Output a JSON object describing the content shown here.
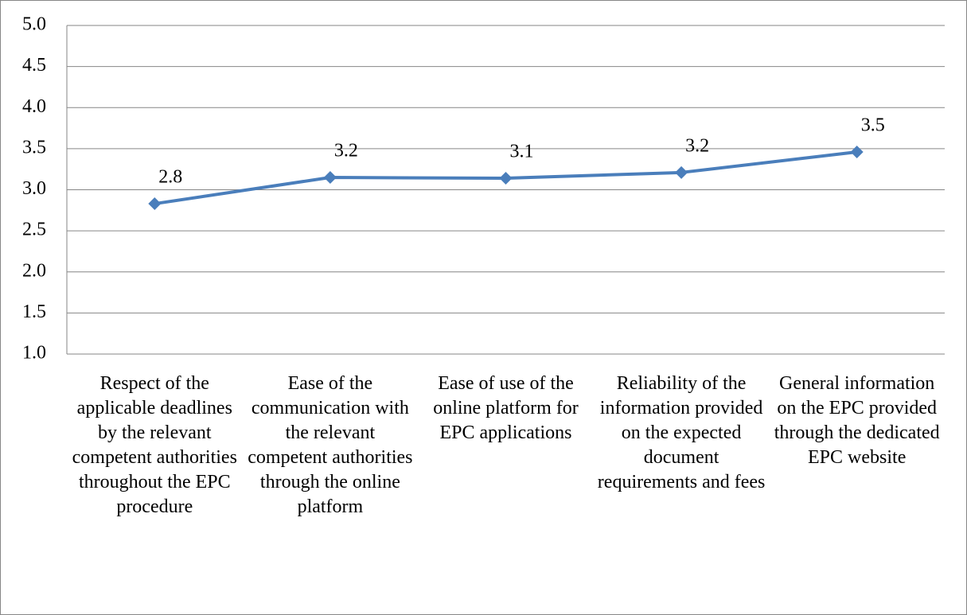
{
  "chart_data": {
    "type": "line",
    "categories": [
      "Respect of the applicable deadlines by the relevant competent authorities throughout the EPC procedure",
      "Ease of the communication with the relevant competent authorities through the online platform",
      "Ease of use of the online platform for EPC applications",
      "Reliability of the information provided on the expected document requirements and fees",
      "General information on the EPC provided through the dedicated EPC website"
    ],
    "series": [
      {
        "color": "#4a7ebb",
        "values": [
          2.83,
          3.15,
          3.14,
          3.21,
          3.46
        ],
        "value_labels": [
          "2.8",
          "3.2",
          "3.1",
          "3.2",
          "3.5"
        ]
      }
    ],
    "ylim": [
      1,
      5
    ],
    "yticks": [
      {
        "value": 1,
        "label": "1.0"
      },
      {
        "value": 1.5,
        "label": "1.5"
      },
      {
        "value": 2,
        "label": "2.0"
      },
      {
        "value": 2.5,
        "label": "2.5"
      },
      {
        "value": 3,
        "label": "3.0"
      },
      {
        "value": 3.5,
        "label": "3.5"
      },
      {
        "value": 4,
        "label": "4.0"
      },
      {
        "value": 4.5,
        "label": "4.5"
      },
      {
        "value": 5,
        "label": "5.0"
      }
    ],
    "grid": true
  }
}
